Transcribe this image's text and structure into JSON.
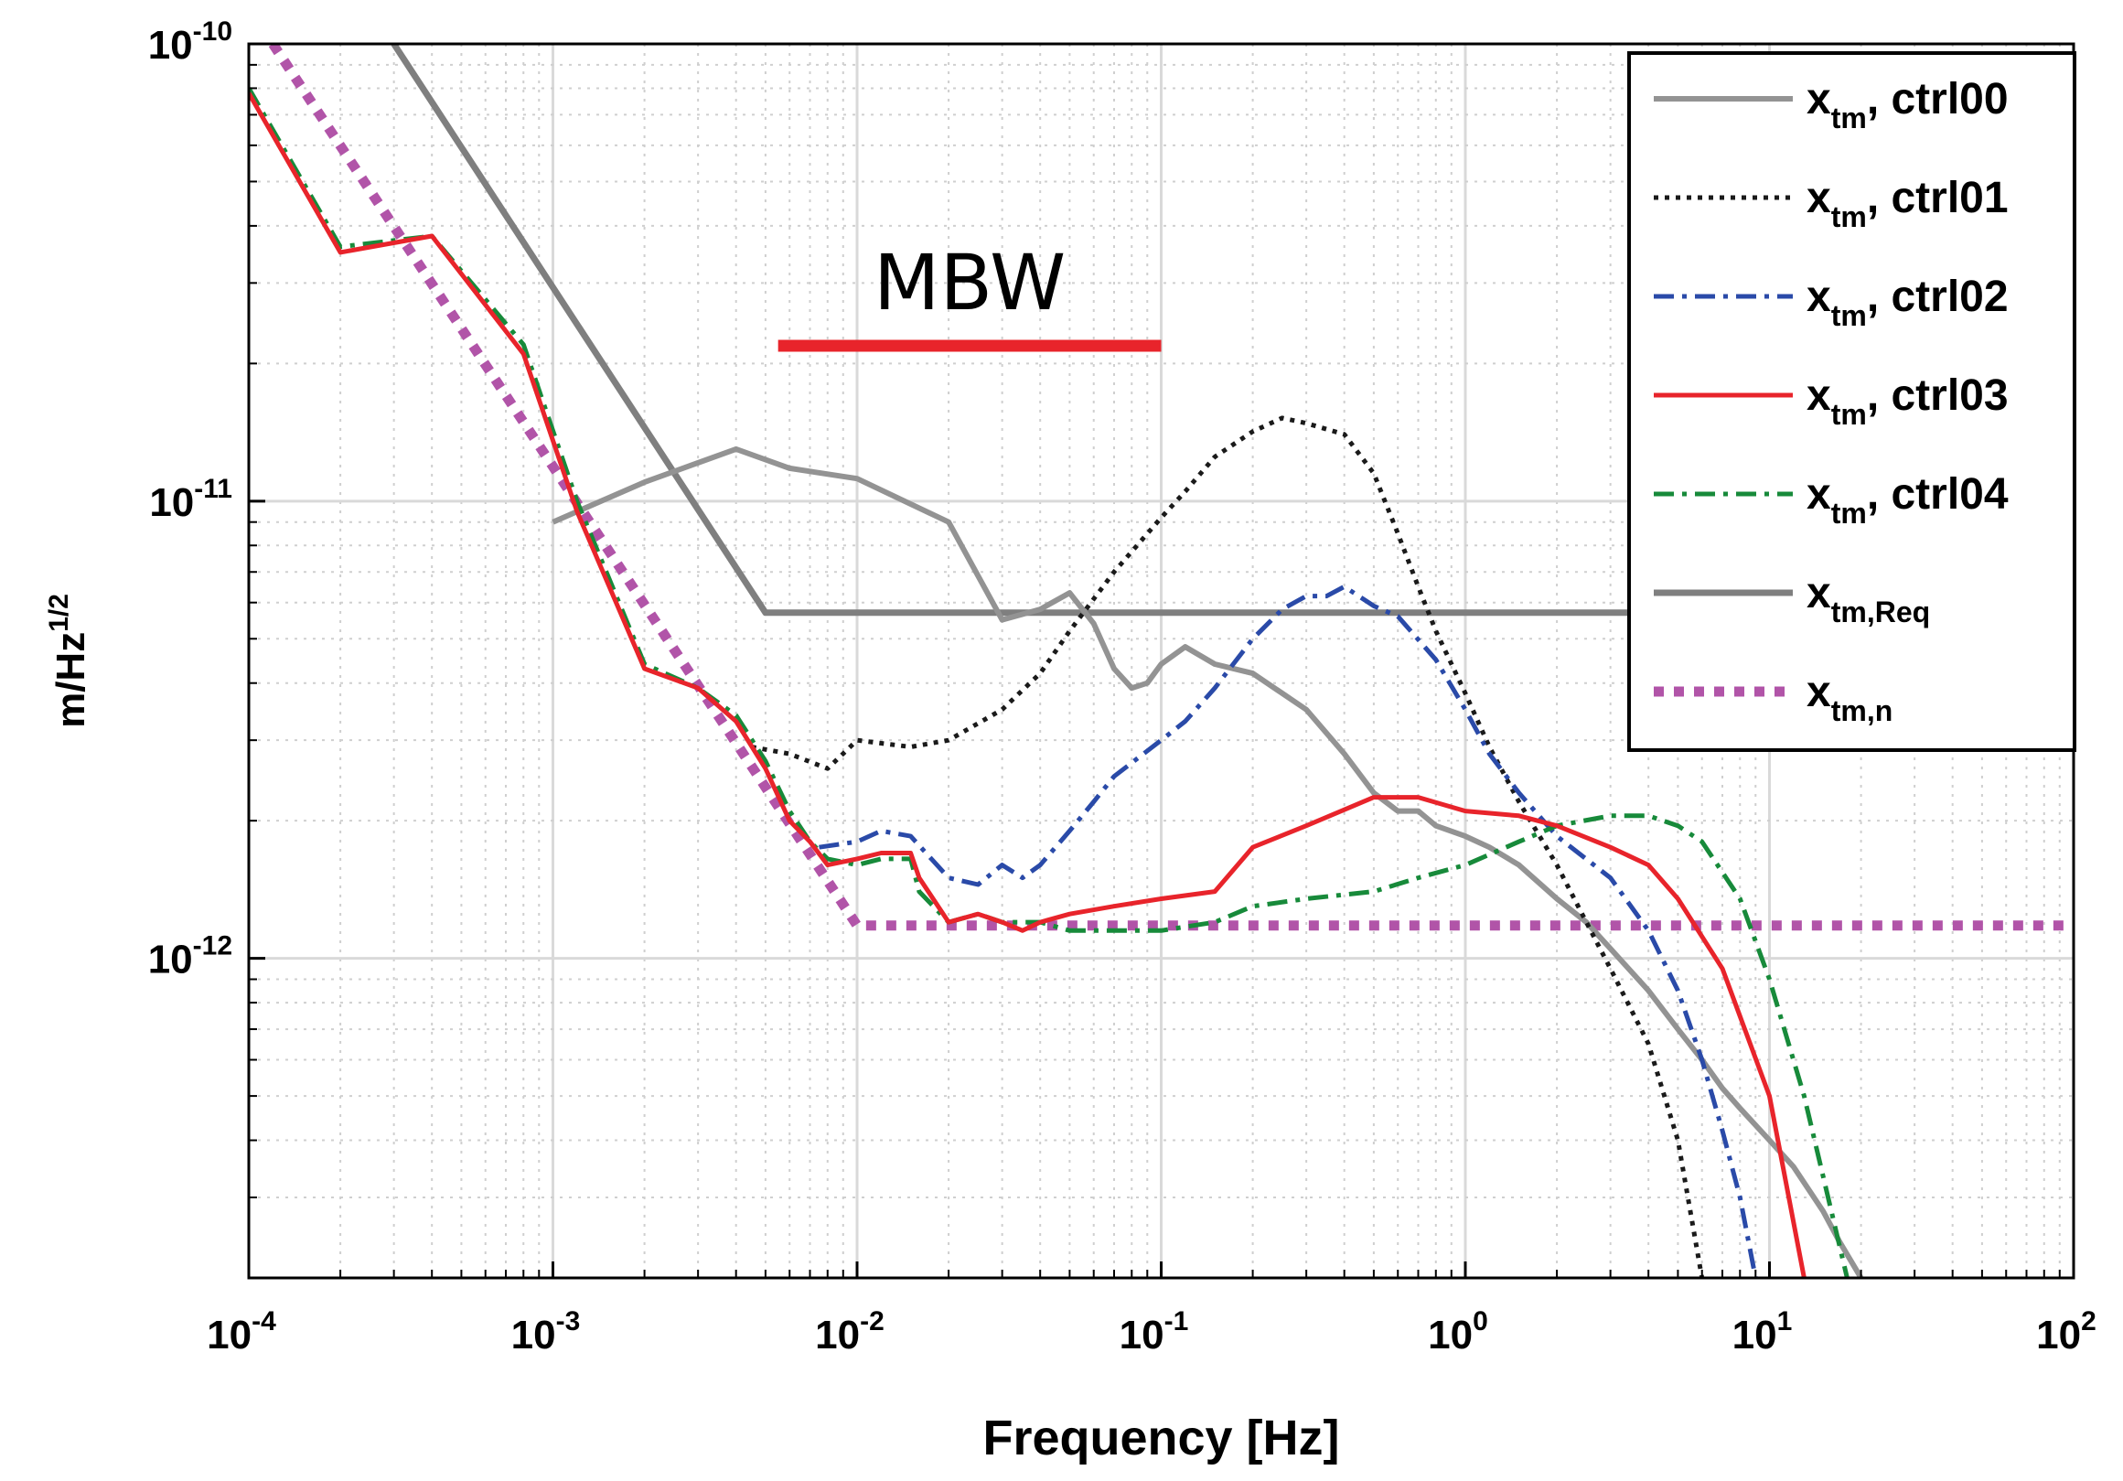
{
  "chart_data": {
    "type": "line",
    "title": "",
    "xlabel": "Frequency [Hz]",
    "ylabel": "m/Hz^1/2",
    "ylabel_base": "m/Hz",
    "ylabel_sup": "1/2",
    "xscale": "log",
    "yscale": "log",
    "xlim": [
      0.0001,
      100
    ],
    "ylim": [
      2e-13,
      1e-10
    ],
    "grid": true,
    "legend_position": "top-right",
    "x_ticks": [
      {
        "base": "10",
        "exp": "-4"
      },
      {
        "base": "10",
        "exp": "-3"
      },
      {
        "base": "10",
        "exp": "-2"
      },
      {
        "base": "10",
        "exp": "-1"
      },
      {
        "base": "10",
        "exp": "0"
      },
      {
        "base": "10",
        "exp": "1"
      },
      {
        "base": "10",
        "exp": "2"
      }
    ],
    "y_ticks": [
      {
        "base": "10",
        "exp": "-10"
      },
      {
        "base": "10",
        "exp": "-11"
      },
      {
        "base": "10",
        "exp": "-12"
      }
    ],
    "annotation": {
      "text": "MBW",
      "band_hz": [
        0.0055,
        0.1
      ],
      "color": "#e8242b"
    },
    "series": [
      {
        "name": "ctrl00",
        "label_main": "x",
        "label_sub": "tm",
        "label_rest": ", ctrl00",
        "color": "#939393",
        "style": "solid",
        "width": 6,
        "x": [
          0.001,
          0.002,
          0.004,
          0.006,
          0.01,
          0.02,
          0.03,
          0.04,
          0.05,
          0.06,
          0.07,
          0.08,
          0.09,
          0.1,
          0.12,
          0.15,
          0.2,
          0.25,
          0.3,
          0.4,
          0.5,
          0.6,
          0.7,
          0.8,
          1.0,
          1.2,
          1.5,
          2.0,
          2.5,
          3.0,
          4.0,
          5.0,
          6.0,
          7.0,
          8.0,
          10.0,
          12.0,
          15.0,
          17.0,
          20.0
        ],
        "y": [
          9e-12,
          1.1e-11,
          1.3e-11,
          1.18e-11,
          1.12e-11,
          9e-12,
          5.5e-12,
          5.8e-12,
          6.3e-12,
          5.4e-12,
          4.3e-12,
          3.9e-12,
          4e-12,
          4.4e-12,
          4.8e-12,
          4.4e-12,
          4.2e-12,
          3.8e-12,
          3.5e-12,
          2.8e-12,
          2.3e-12,
          2.1e-12,
          2.1e-12,
          1.95e-12,
          1.85e-12,
          1.75e-12,
          1.6e-12,
          1.35e-12,
          1.2e-12,
          1.05e-12,
          8.5e-13,
          7e-13,
          6e-13,
          5.2e-13,
          4.7e-13,
          4e-13,
          3.5e-13,
          2.8e-13,
          2.4e-13,
          2e-13
        ]
      },
      {
        "name": "ctrl01",
        "label_main": "x",
        "label_sub": "tm",
        "label_rest": ", ctrl01",
        "color": "#1a1a1a",
        "style": "dotted",
        "width": 5,
        "x": [
          0.0045,
          0.006,
          0.008,
          0.01,
          0.015,
          0.02,
          0.03,
          0.04,
          0.05,
          0.07,
          0.1,
          0.12,
          0.15,
          0.2,
          0.25,
          0.3,
          0.4,
          0.5,
          0.6,
          0.7,
          0.8,
          1.0,
          1.2,
          1.5,
          2.0,
          2.5,
          3.0,
          4.0,
          5.0,
          6.0
        ],
        "y": [
          2.9e-12,
          2.8e-12,
          2.6e-12,
          3e-12,
          2.9e-12,
          3e-12,
          3.5e-12,
          4.2e-12,
          5.2e-12,
          7e-12,
          9.2e-12,
          1.05e-11,
          1.25e-11,
          1.42e-11,
          1.52e-11,
          1.48e-11,
          1.4e-11,
          1.15e-11,
          8.5e-12,
          6.5e-12,
          5.2e-12,
          3.8e-12,
          2.9e-12,
          2.2e-12,
          1.6e-12,
          1.2e-12,
          9.5e-13,
          6.5e-13,
          4e-13,
          2e-13
        ]
      },
      {
        "name": "ctrl02",
        "label_main": "x",
        "label_sub": "tm",
        "label_rest": ", ctrl02",
        "color": "#2a4aa8",
        "style": "dashdot",
        "width": 5,
        "x": [
          0.0075,
          0.01,
          0.012,
          0.015,
          0.02,
          0.025,
          0.03,
          0.035,
          0.04,
          0.05,
          0.06,
          0.07,
          0.1,
          0.12,
          0.15,
          0.2,
          0.25,
          0.3,
          0.35,
          0.4,
          0.5,
          0.6,
          0.8,
          1.0,
          1.2,
          1.5,
          2.0,
          3.0,
          4.0,
          5.0,
          6.0,
          7.0,
          8.0,
          9.0
        ],
        "y": [
          1.75e-12,
          1.8e-12,
          1.9e-12,
          1.85e-12,
          1.5e-12,
          1.45e-12,
          1.6e-12,
          1.5e-12,
          1.6e-12,
          1.9e-12,
          2.2e-12,
          2.5e-12,
          3e-12,
          3.3e-12,
          3.9e-12,
          5e-12,
          5.8e-12,
          6.2e-12,
          6.2e-12,
          6.5e-12,
          5.9e-12,
          5.6e-12,
          4.5e-12,
          3.5e-12,
          2.8e-12,
          2.3e-12,
          1.85e-12,
          1.5e-12,
          1.15e-12,
          8.5e-13,
          6e-13,
          4.2e-13,
          3e-13,
          2e-13
        ]
      },
      {
        "name": "ctrl03",
        "label_main": "x",
        "label_sub": "tm",
        "label_rest": ", ctrl03",
        "color": "#e8242b",
        "style": "solid",
        "width": 5,
        "x": [
          0.0001,
          0.0002,
          0.0004,
          0.0008,
          0.0012,
          0.002,
          0.003,
          0.004,
          0.005,
          0.006,
          0.007,
          0.008,
          0.01,
          0.012,
          0.015,
          0.016,
          0.02,
          0.025,
          0.03,
          0.035,
          0.04,
          0.05,
          0.07,
          0.1,
          0.15,
          0.2,
          0.3,
          0.5,
          0.7,
          1.0,
          1.5,
          2.0,
          3.0,
          4.0,
          5.0,
          7.0,
          10.0,
          13.0
        ],
        "y": [
          7.8e-11,
          3.5e-11,
          3.8e-11,
          2.1e-11,
          9.5e-12,
          4.3e-12,
          3.9e-12,
          3.3e-12,
          2.6e-12,
          2e-12,
          1.8e-12,
          1.6e-12,
          1.65e-12,
          1.7e-12,
          1.7e-12,
          1.5e-12,
          1.2e-12,
          1.25e-12,
          1.2e-12,
          1.15e-12,
          1.2e-12,
          1.25e-12,
          1.3e-12,
          1.35e-12,
          1.4e-12,
          1.75e-12,
          1.95e-12,
          2.25e-12,
          2.25e-12,
          2.1e-12,
          2.05e-12,
          1.95e-12,
          1.75e-12,
          1.6e-12,
          1.35e-12,
          9.5e-13,
          5e-13,
          2e-13
        ]
      },
      {
        "name": "ctrl04",
        "label_main": "x",
        "label_sub": "tm",
        "label_rest": ", ctrl04",
        "color": "#178a3a",
        "style": "dashdot",
        "width": 5,
        "x": [
          0.0001,
          0.0002,
          0.0004,
          0.0008,
          0.0012,
          0.002,
          0.003,
          0.004,
          0.005,
          0.006,
          0.007,
          0.008,
          0.01,
          0.012,
          0.015,
          0.016,
          0.02,
          0.025,
          0.03,
          0.04,
          0.05,
          0.07,
          0.1,
          0.15,
          0.2,
          0.3,
          0.5,
          0.7,
          1.0,
          1.5,
          2.0,
          3.0,
          4.0,
          5.0,
          6.0,
          8.0,
          10.0,
          13.0,
          18.0
        ],
        "y": [
          8e-11,
          3.6e-11,
          3.8e-11,
          2.2e-11,
          1e-11,
          4.4e-12,
          3.9e-12,
          3.4e-12,
          2.7e-12,
          2.1e-12,
          1.8e-12,
          1.65e-12,
          1.6e-12,
          1.65e-12,
          1.65e-12,
          1.4e-12,
          1.2e-12,
          1.25e-12,
          1.2e-12,
          1.2e-12,
          1.15e-12,
          1.15e-12,
          1.15e-12,
          1.2e-12,
          1.3e-12,
          1.35e-12,
          1.4e-12,
          1.5e-12,
          1.6e-12,
          1.8e-12,
          1.95e-12,
          2.05e-12,
          2.05e-12,
          1.95e-12,
          1.8e-12,
          1.35e-12,
          9e-13,
          5e-13,
          2e-13
        ]
      },
      {
        "name": "req",
        "label_main": "x",
        "label_sub": "tm,Req",
        "label_rest": "",
        "color": "#7f7f7f",
        "style": "solid",
        "width": 7,
        "x": [
          0.0003,
          0.005,
          100
        ],
        "y": [
          1e-10,
          5.7e-12,
          5.7e-12
        ]
      },
      {
        "name": "noise",
        "label_main": "x",
        "label_sub": "tm,n",
        "label_rest": "",
        "color": "#b154a8",
        "style": "dotted-thick",
        "width": 11,
        "x": [
          0.00012,
          0.01,
          100
        ],
        "y": [
          1e-10,
          1.18e-12,
          1.18e-12
        ]
      }
    ]
  }
}
